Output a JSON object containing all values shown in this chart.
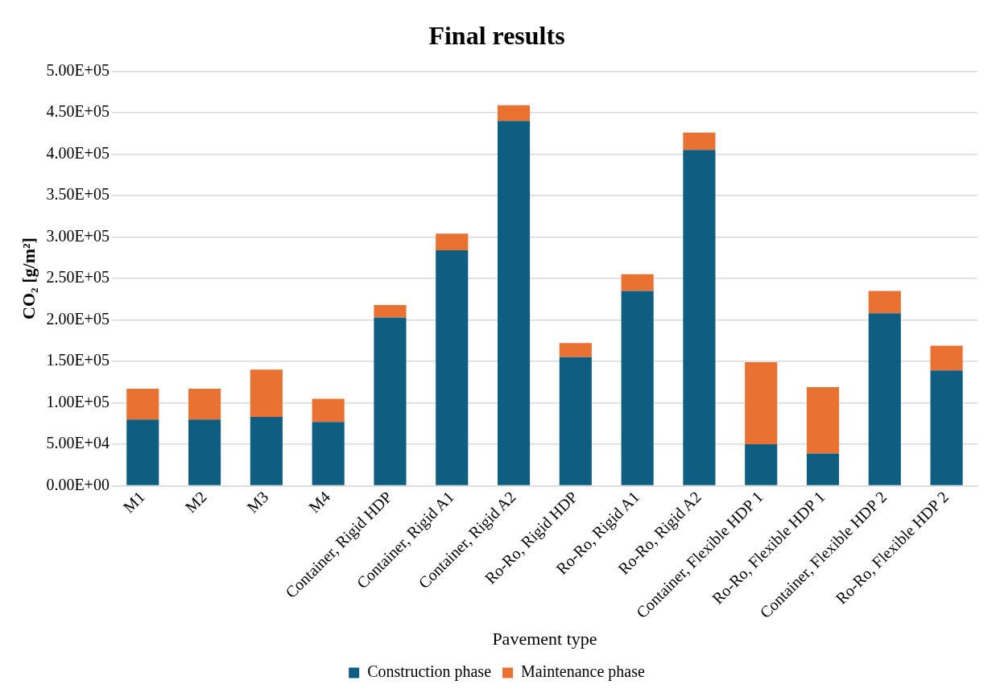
{
  "chart_data": {
    "type": "bar",
    "title": "Final results",
    "xlabel": "Pavement type",
    "ylabel": "CO₂ [g/m²]",
    "stacked": true,
    "grid": "y",
    "legend": "bottom",
    "categories": [
      "M1",
      "M2",
      "M3",
      "M4",
      "Container, Rigid HDP",
      "Container, Rigid A1",
      "Container, Rigid A2",
      "Ro-Ro, Rigid HDP",
      "Ro-Ro, Rigid A1",
      "Ro-Ro, Rigid A2",
      "Container, Flexible HDP 1",
      "Ro-Ro, Flexible HDP 1",
      "Container, Flexible HDP 2",
      "Ro-Ro, Flexible HDP 2"
    ],
    "series": [
      {
        "name": "Construction phase",
        "color": "#0f5e82",
        "values": [
          80000,
          80000,
          83000,
          77000,
          203000,
          284000,
          440000,
          155000,
          235000,
          405000,
          50000,
          39000,
          208000,
          139000
        ]
      },
      {
        "name": "Maintenance phase",
        "color": "#e97132",
        "values": [
          37000,
          37000,
          57000,
          28000,
          15000,
          20000,
          19000,
          17000,
          20000,
          21000,
          99000,
          80000,
          27000,
          30000
        ]
      }
    ],
    "ylim": [
      0,
      500000
    ],
    "yticks": [
      {
        "value": 0,
        "label": "0.00E+00"
      },
      {
        "value": 50000,
        "label": "5.00E+04"
      },
      {
        "value": 100000,
        "label": "1.00E+05"
      },
      {
        "value": 150000,
        "label": "1.50E+05"
      },
      {
        "value": 200000,
        "label": "2.00E+05"
      },
      {
        "value": 250000,
        "label": "2.50E+05"
      },
      {
        "value": 300000,
        "label": "3.00E+05"
      },
      {
        "value": 350000,
        "label": "3.50E+05"
      },
      {
        "value": 400000,
        "label": "4.00E+05"
      },
      {
        "value": 450000,
        "label": "4.50E+05"
      },
      {
        "value": 500000,
        "label": "5.00E+05"
      }
    ]
  }
}
